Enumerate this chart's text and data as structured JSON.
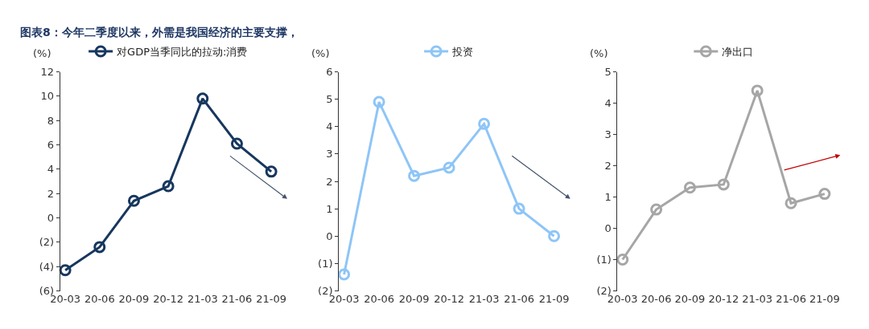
{
  "chart_data": [
    {
      "type": "line",
      "title": "图表8：今年二季度以来，外需是我国经济的主要支撑，",
      "ylabel": "(%)",
      "categories": [
        "20-03",
        "20-06",
        "20-09",
        "20-12",
        "21-03",
        "21-06",
        "21-09"
      ],
      "series": [
        {
          "name": "对GDP当季同比的拉动:消费",
          "color": "#17375e",
          "values": [
            -4.3,
            -2.4,
            1.4,
            2.6,
            9.8,
            6.1,
            3.8
          ]
        }
      ],
      "ylim": [
        -6,
        12
      ],
      "yticks": [
        {
          "value": -6,
          "label": "(6)"
        },
        {
          "value": -4,
          "label": "(4)"
        },
        {
          "value": -2,
          "label": "(2)"
        },
        0,
        2,
        4,
        6,
        8,
        10,
        12
      ],
      "marker": "circle",
      "line_style": "solid",
      "legend": "top",
      "grid": false
    },
    {
      "type": "line",
      "ylabel": "(%)",
      "categories": [
        "20-03",
        "20-06",
        "20-09",
        "20-12",
        "21-03",
        "21-06",
        "21-09"
      ],
      "series": [
        {
          "name": "投资",
          "color": "#8ec5f7",
          "values": [
            -1.4,
            4.9,
            2.2,
            2.5,
            4.1,
            1.0,
            0.0
          ]
        }
      ],
      "ylim": [
        -2,
        6
      ],
      "yticks": [
        {
          "value": -2,
          "label": "(2)"
        },
        {
          "value": -1,
          "label": "(1)"
        },
        0,
        1,
        2,
        3,
        4,
        5,
        6
      ],
      "marker": "circle",
      "line_style": "solid",
      "legend": "top",
      "grid": false
    },
    {
      "type": "line",
      "ylabel": "(%)",
      "categories": [
        "20-03",
        "20-06",
        "20-09",
        "20-12",
        "21-03",
        "21-06",
        "21-09"
      ],
      "series": [
        {
          "name": "净出口",
          "color": "#a6a6a6",
          "values": [
            -1.0,
            0.6,
            1.3,
            1.4,
            4.4,
            0.8,
            1.1
          ]
        }
      ],
      "ylim": [
        -2,
        5
      ],
      "yticks": [
        {
          "value": -2,
          "label": "(2)"
        },
        {
          "value": -1,
          "label": "(1)"
        },
        0,
        1,
        2,
        3,
        4,
        5
      ],
      "marker": "circle",
      "line_style": "solid",
      "legend": "top",
      "grid": false
    }
  ]
}
